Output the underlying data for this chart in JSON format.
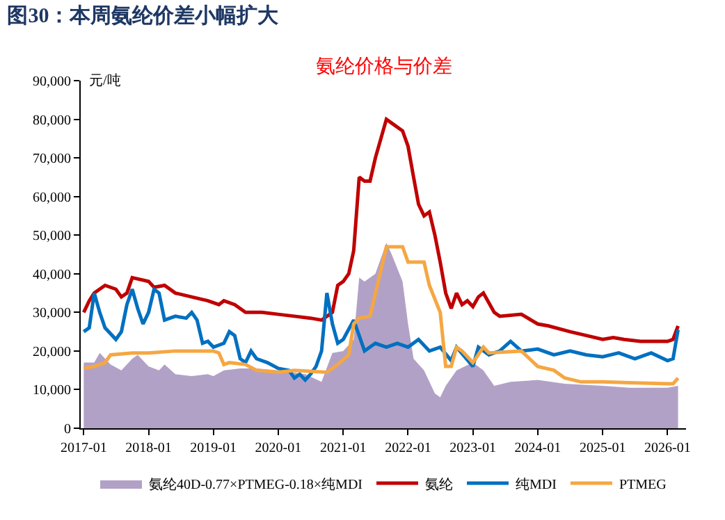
{
  "chart_data": {
    "type": "line",
    "title": "图30：本周氨纶价差小幅扩大",
    "subtitle": "氨纶价格与价差",
    "ylabel": "元/吨",
    "xlim": [
      "2016-12-15",
      "2026-04-15"
    ],
    "xticks": [
      "2017-01",
      "2018-01",
      "2019-01",
      "2020-01",
      "2021-01",
      "2022-01",
      "2023-01",
      "2024-01",
      "2025-01",
      "2026-01"
    ],
    "ylim": [
      0,
      90000
    ],
    "yticks": [
      {
        "value": 0,
        "label": "0"
      },
      {
        "value": 10000,
        "label": "10,000"
      },
      {
        "value": 20000,
        "label": "20,000"
      },
      {
        "value": 30000,
        "label": "30,000"
      },
      {
        "value": 40000,
        "label": "40,000"
      },
      {
        "value": 50000,
        "label": "50,000"
      },
      {
        "value": 60000,
        "label": "60,000"
      },
      {
        "value": 70000,
        "label": "70,000"
      },
      {
        "value": 80000,
        "label": "80,000"
      },
      {
        "value": 90000,
        "label": "90,000"
      }
    ],
    "grid": false,
    "legend": "bottom",
    "marker": "none",
    "line_style": "solid",
    "series": [
      {
        "name": "氨纶40D-0.77×PTMEG-0.18×纯MDI",
        "type": "area",
        "color": "#b2a1c7",
        "x": [
          "2017-01",
          "2017-03",
          "2017-04",
          "2017-06",
          "2017-08",
          "2017-10",
          "2017-11",
          "2018-01",
          "2018-03",
          "2018-04",
          "2018-06",
          "2018-09",
          "2018-12",
          "2019-01",
          "2019-03",
          "2019-06",
          "2019-09",
          "2020-01",
          "2020-06",
          "2020-09",
          "2020-11",
          "2021-01",
          "2021-03",
          "2021-04",
          "2021-05",
          "2021-07",
          "2021-09",
          "2021-10",
          "2021-12",
          "2022-01",
          "2022-02",
          "2022-04",
          "2022-06",
          "2022-07",
          "2022-08",
          "2022-10",
          "2023-01",
          "2023-03",
          "2023-05",
          "2023-08",
          "2024-01",
          "2024-06",
          "2025-01",
          "2025-06",
          "2026-01",
          "2026-03"
        ],
        "values": [
          17000,
          17000,
          19500,
          16500,
          15000,
          18000,
          19000,
          16000,
          15000,
          16500,
          14000,
          13500,
          14000,
          13500,
          15000,
          15500,
          15500,
          15000,
          14000,
          12000,
          19500,
          20000,
          23000,
          39000,
          38000,
          40000,
          48000,
          45000,
          38000,
          27000,
          18000,
          15000,
          9000,
          8000,
          11000,
          15000,
          17000,
          15000,
          11000,
          12000,
          12500,
          11500,
          11000,
          10500,
          10500,
          11000
        ]
      },
      {
        "name": "氨纶",
        "color": "#c00000",
        "x": [
          "2017-01",
          "2017-02",
          "2017-03",
          "2017-05",
          "2017-07",
          "2017-08",
          "2017-09",
          "2017-10",
          "2018-01",
          "2018-02",
          "2018-04",
          "2018-06",
          "2018-09",
          "2018-12",
          "2019-02",
          "2019-03",
          "2019-05",
          "2019-07",
          "2019-10",
          "2020-01",
          "2020-04",
          "2020-07",
          "2020-09",
          "2020-11",
          "2020-12",
          "2021-01",
          "2021-02",
          "2021-03",
          "2021-04",
          "2021-05",
          "2021-06",
          "2021-07",
          "2021-08",
          "2021-09",
          "2021-10",
          "2021-12",
          "2022-01",
          "2022-02",
          "2022-03",
          "2022-04",
          "2022-05",
          "2022-06",
          "2022-07",
          "2022-08",
          "2022-09",
          "2022-10",
          "2022-11",
          "2022-12",
          "2023-01",
          "2023-02",
          "2023-03",
          "2023-05",
          "2023-06",
          "2023-10",
          "2024-01",
          "2024-03",
          "2024-07",
          "2024-10",
          "2025-01",
          "2025-03",
          "2025-05",
          "2025-08",
          "2026-01",
          "2026-02",
          "2026-03"
        ],
        "values": [
          30000,
          33000,
          35000,
          37000,
          36000,
          34000,
          35000,
          39000,
          38000,
          36500,
          37000,
          35000,
          34000,
          33000,
          32000,
          33000,
          32000,
          30000,
          30000,
          29500,
          29000,
          28500,
          28000,
          30000,
          37000,
          38000,
          40000,
          46000,
          65000,
          64000,
          64000,
          70000,
          75000,
          80000,
          79000,
          77000,
          73000,
          65000,
          58000,
          55000,
          56000,
          50000,
          43000,
          35000,
          31000,
          35000,
          32000,
          33000,
          31500,
          34000,
          35000,
          30000,
          29000,
          29500,
          27000,
          26500,
          25000,
          24000,
          23000,
          23500,
          23000,
          22500,
          22500,
          23000,
          26500
        ]
      },
      {
        "name": "纯MDI",
        "color": "#0070c0",
        "x": [
          "2017-01",
          "2017-02",
          "2017-03",
          "2017-04",
          "2017-05",
          "2017-07",
          "2017-08",
          "2017-09",
          "2017-10",
          "2017-11",
          "2017-12",
          "2018-01",
          "2018-02",
          "2018-03",
          "2018-04",
          "2018-06",
          "2018-08",
          "2018-09",
          "2018-10",
          "2018-11",
          "2018-12",
          "2019-01",
          "2019-03",
          "2019-04",
          "2019-05",
          "2019-06",
          "2019-07",
          "2019-08",
          "2019-09",
          "2019-11",
          "2020-01",
          "2020-03",
          "2020-04",
          "2020-05",
          "2020-06",
          "2020-07",
          "2020-08",
          "2020-09",
          "2020-10",
          "2020-11",
          "2020-12",
          "2021-01",
          "2021-03",
          "2021-05",
          "2021-07",
          "2021-09",
          "2021-11",
          "2022-01",
          "2022-03",
          "2022-05",
          "2022-07",
          "2022-09",
          "2022-10",
          "2023-01",
          "2023-02",
          "2023-04",
          "2023-06",
          "2023-08",
          "2023-10",
          "2024-01",
          "2024-04",
          "2024-07",
          "2024-10",
          "2025-01",
          "2025-04",
          "2025-07",
          "2025-10",
          "2026-01",
          "2026-02",
          "2026-03"
        ],
        "values": [
          25000,
          26000,
          35000,
          30000,
          26000,
          23000,
          25000,
          32000,
          36000,
          31000,
          27000,
          30000,
          36000,
          35000,
          28000,
          29000,
          28500,
          30000,
          28000,
          22000,
          22500,
          21000,
          22000,
          25000,
          24000,
          18000,
          17000,
          20000,
          18000,
          17000,
          15500,
          15000,
          13000,
          14000,
          12500,
          14000,
          16000,
          20000,
          35000,
          27000,
          22000,
          23000,
          28000,
          20000,
          22000,
          21000,
          22000,
          21000,
          23000,
          20000,
          21000,
          17500,
          21000,
          16000,
          21000,
          19000,
          20000,
          22500,
          20000,
          20500,
          19000,
          20000,
          19000,
          18500,
          19500,
          18000,
          19500,
          17500,
          18000,
          25500
        ]
      },
      {
        "name": "PTMEG",
        "color": "#f5a742",
        "x": [
          "2017-01",
          "2017-03",
          "2017-05",
          "2017-06",
          "2017-10",
          "2018-01",
          "2018-06",
          "2019-01",
          "2019-02",
          "2019-03",
          "2019-04",
          "2019-07",
          "2019-09",
          "2020-01",
          "2020-04",
          "2020-10",
          "2020-12",
          "2021-02",
          "2021-03",
          "2021-04",
          "2021-06",
          "2021-09",
          "2021-12",
          "2022-01",
          "2022-04",
          "2022-05",
          "2022-07",
          "2022-08",
          "2022-09",
          "2022-10",
          "2022-11",
          "2023-01",
          "2023-03",
          "2023-04",
          "2023-10",
          "2024-01",
          "2024-04",
          "2024-06",
          "2024-09",
          "2025-01",
          "2025-06",
          "2026-01",
          "2026-02",
          "2026-03"
        ],
        "values": [
          15500,
          16000,
          17000,
          19000,
          19500,
          19500,
          20000,
          20000,
          19500,
          16500,
          17000,
          16500,
          15000,
          14500,
          15000,
          14500,
          16500,
          19000,
          27000,
          28500,
          29000,
          47000,
          47000,
          43000,
          43000,
          37000,
          30000,
          16000,
          16000,
          21000,
          20000,
          17000,
          21000,
          19500,
          20000,
          16000,
          15000,
          13000,
          12000,
          12000,
          11800,
          11500,
          11500,
          13000
        ]
      }
    ]
  }
}
